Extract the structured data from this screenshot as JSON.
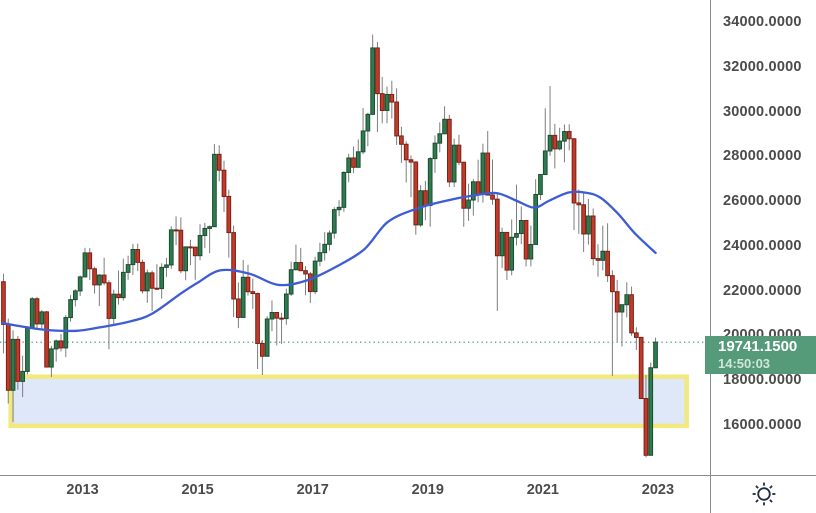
{
  "price_badge": {
    "price": "19741.1500",
    "time": "14:50:03",
    "bg_color": "#569b79"
  },
  "y_axis": {
    "tick_labels": [
      "34000.0000",
      "32000.0000",
      "30000.0000",
      "28000.0000",
      "26000.0000",
      "24000.0000",
      "22000.0000",
      "20000.0000",
      "18000.0000",
      "16000.0000"
    ],
    "tick_values": [
      34000,
      32000,
      30000,
      28000,
      26000,
      24000,
      22000,
      20000,
      18000,
      16000
    ]
  },
  "x_axis": {
    "tick_labels": [
      "2013",
      "2015",
      "2017",
      "2019",
      "2021",
      "2023"
    ],
    "tick_values": [
      2013,
      2015,
      2017,
      2019,
      2021,
      2023
    ]
  },
  "chart_data": {
    "type": "candlestick",
    "timeframe": "monthly",
    "start_month": "2011-08",
    "xlim": [
      2011.565,
      2023.905
    ],
    "ylim": [
      13806,
      35029
    ],
    "grid": "off",
    "legend": "none",
    "current_price": 19741.15,
    "current_price_label": "19741.1500",
    "current_time_label": "14:50:03",
    "colors": {
      "up_fill": "#2f7b50",
      "up_border": "#1b4d30",
      "down_fill": "#c13a2c",
      "down_border": "#7c2012",
      "wick": "#7d7d7d",
      "dotted_price_line": "#2c8f6d",
      "ma_line": "#3e5cd5",
      "badge_bg": "#569b79",
      "axis_line": "#8a8a8a",
      "axis_text": "#4b4b4b",
      "zone_fill": "#dbe6f8",
      "zone_border": "#f1e878",
      "settings_icon": "#1f2c3f"
    },
    "candles_ohlc": [
      [
        22440,
        22808,
        19241,
        20535
      ],
      [
        20535,
        20790,
        16999,
        17592
      ],
      [
        17592,
        20272,
        16170,
        19865
      ],
      [
        19865,
        20014,
        17613,
        17989
      ],
      [
        17989,
        19138,
        17286,
        18434
      ],
      [
        18434,
        20441,
        18306,
        20390
      ],
      [
        20390,
        21760,
        20337,
        21680
      ],
      [
        21680,
        21761,
        20324,
        20556
      ],
      [
        20556,
        21174,
        20265,
        21094
      ],
      [
        21094,
        21134,
        18630,
        18629
      ],
      [
        18629,
        19578,
        18186,
        19441
      ],
      [
        19441,
        19854,
        18871,
        19796
      ],
      [
        19796,
        20104,
        19327,
        19483
      ],
      [
        19483,
        20958,
        19076,
        20840
      ],
      [
        20840,
        21845,
        20655,
        21641
      ],
      [
        21641,
        22111,
        21337,
        22030
      ],
      [
        22030,
        22718,
        21807,
        22657
      ],
      [
        22657,
        23960,
        22657,
        23730
      ],
      [
        23730,
        23944,
        22519,
        23020
      ],
      [
        23020,
        23111,
        21911,
        22300
      ],
      [
        22300,
        22790,
        21354,
        22737
      ],
      [
        22737,
        23512,
        22285,
        22392
      ],
      [
        22392,
        22507,
        19426,
        20803
      ],
      [
        20803,
        22088,
        20473,
        21884
      ],
      [
        21884,
        22938,
        21420,
        21731
      ],
      [
        21731,
        23474,
        21600,
        22860
      ],
      [
        22860,
        23605,
        22528,
        23206
      ],
      [
        23206,
        24133,
        22747,
        23881
      ],
      [
        23881,
        24145,
        22918,
        23306
      ],
      [
        23306,
        23426,
        21916,
        22035
      ],
      [
        22035,
        22986,
        21500,
        22837
      ],
      [
        22837,
        22945,
        21137,
        22151
      ],
      [
        22151,
        23225,
        22089,
        22134
      ],
      [
        22134,
        23263,
        21682,
        23082
      ],
      [
        23082,
        23507,
        22660,
        23191
      ],
      [
        23191,
        24916,
        23021,
        24757
      ],
      [
        24757,
        25363,
        24075,
        24742
      ],
      [
        24742,
        25318,
        22820,
        22933
      ],
      [
        22933,
        23999,
        22507,
        23998
      ],
      [
        23998,
        24317,
        23175,
        23987
      ],
      [
        23987,
        24005,
        22530,
        23605
      ],
      [
        23605,
        25011,
        23400,
        24507
      ],
      [
        24507,
        25071,
        23941,
        24823
      ],
      [
        24823,
        24954,
        23717,
        24901
      ],
      [
        24901,
        28589,
        24901,
        28133
      ],
      [
        28133,
        28543,
        26930,
        27424
      ],
      [
        27424,
        27848,
        25557,
        26250
      ],
      [
        26250,
        26553,
        23516,
        24636
      ],
      [
        24636,
        24953,
        20865,
        21671
      ],
      [
        21671,
        22415,
        20368,
        20846
      ],
      [
        20846,
        23418,
        20846,
        22640
      ],
      [
        22640,
        23200,
        21821,
        21996
      ],
      [
        21996,
        22576,
        21232,
        21914
      ],
      [
        21914,
        21958,
        18542,
        19683
      ],
      [
        19683,
        19836,
        18278,
        19112
      ],
      [
        19112,
        20901,
        19112,
        20777
      ],
      [
        20777,
        21608,
        20232,
        21067
      ],
      [
        21067,
        21085,
        19595,
        20815
      ],
      [
        20815,
        21051,
        19663,
        20794
      ],
      [
        20794,
        22130,
        20518,
        21891
      ],
      [
        21891,
        23340,
        21807,
        22977
      ],
      [
        22977,
        24100,
        22949,
        23297
      ],
      [
        23297,
        23953,
        22934,
        22935
      ],
      [
        22935,
        23147,
        21839,
        22790
      ],
      [
        22790,
        22880,
        21488,
        22001
      ],
      [
        22001,
        23559,
        21884,
        23361
      ],
      [
        23361,
        24184,
        23138,
        23741
      ],
      [
        23741,
        24656,
        23384,
        24112
      ],
      [
        24112,
        24737,
        23825,
        24615
      ],
      [
        24615,
        25771,
        24366,
        25661
      ],
      [
        25661,
        26090,
        25371,
        25765
      ],
      [
        25765,
        27381,
        25565,
        27324
      ],
      [
        27324,
        28155,
        26884,
        27970
      ],
      [
        27970,
        28483,
        27295,
        27554
      ],
      [
        27554,
        28798,
        27554,
        28246
      ],
      [
        28246,
        30199,
        28141,
        29177
      ],
      [
        29177,
        29988,
        28496,
        29919
      ],
      [
        29919,
        33484,
        29919,
        32887
      ],
      [
        32887,
        33154,
        29129,
        30845
      ],
      [
        30845,
        31594,
        29518,
        30093
      ],
      [
        30093,
        31162,
        29519,
        30808
      ],
      [
        30808,
        31422,
        29730,
        30469
      ],
      [
        30469,
        31087,
        28556,
        28955
      ],
      [
        28955,
        29368,
        27753,
        28583
      ],
      [
        28583,
        28717,
        26871,
        27889
      ],
      [
        27889,
        28079,
        26220,
        27789
      ],
      [
        27789,
        27823,
        24541,
        24980
      ],
      [
        24980,
        26751,
        24896,
        26507
      ],
      [
        26507,
        26949,
        25180,
        25846
      ],
      [
        25846,
        28011,
        24897,
        27942
      ],
      [
        27942,
        28974,
        27305,
        28633
      ],
      [
        28633,
        29562,
        28220,
        29051
      ],
      [
        29051,
        30280,
        29051,
        29699
      ],
      [
        29699,
        29893,
        26672,
        26901
      ],
      [
        26901,
        28831,
        26672,
        28542
      ],
      [
        28542,
        29008,
        27658,
        27778
      ],
      [
        27778,
        27810,
        24899,
        25725
      ],
      [
        25725,
        26820,
        25163,
        26092
      ],
      [
        26092,
        27020,
        25394,
        26907
      ],
      [
        26907,
        27895,
        25993,
        26346
      ],
      [
        26346,
        28608,
        25978,
        28190
      ],
      [
        28190,
        29175,
        26312,
        26313
      ],
      [
        26313,
        27902,
        25878,
        26130
      ],
      [
        26130,
        26408,
        21139,
        23603
      ],
      [
        23603,
        24855,
        23050,
        24644
      ],
      [
        24644,
        24656,
        22520,
        22961
      ],
      [
        22961,
        25227,
        22729,
        24427
      ],
      [
        24427,
        26782,
        24060,
        24595
      ],
      [
        24595,
        25803,
        24120,
        25177
      ],
      [
        25177,
        25206,
        23124,
        23459
      ],
      [
        23459,
        24953,
        23124,
        24107
      ],
      [
        24107,
        27025,
        24107,
        26341
      ],
      [
        26341,
        27232,
        26094,
        27231
      ],
      [
        27231,
        30191,
        27231,
        28284
      ],
      [
        28284,
        31183,
        28072,
        28980
      ],
      [
        28980,
        29493,
        27505,
        28378
      ],
      [
        28378,
        29320,
        28310,
        28724
      ],
      [
        28724,
        29469,
        27778,
        29152
      ],
      [
        29152,
        29477,
        28310,
        28828
      ],
      [
        28828,
        28858,
        24749,
        25961
      ],
      [
        25961,
        26560,
        24581,
        25879
      ],
      [
        25879,
        26418,
        23771,
        24576
      ],
      [
        24576,
        26136,
        24100,
        25377
      ],
      [
        25377,
        25713,
        23175,
        23475
      ],
      [
        23475,
        24117,
        22665,
        23398
      ],
      [
        23398,
        24952,
        22945,
        23802
      ],
      [
        23802,
        25051,
        22432,
        22713
      ],
      [
        22713,
        22953,
        18235,
        21997
      ],
      [
        21997,
        22525,
        19769,
        21089
      ],
      [
        21089,
        21415,
        19545,
        21415
      ],
      [
        21415,
        22418,
        20845,
        21860
      ],
      [
        21860,
        22230,
        20027,
        20157
      ],
      [
        20157,
        20405,
        19388,
        19954
      ],
      [
        19954,
        19954,
        17201,
        17223
      ],
      [
        17223,
        18278,
        14597,
        14687
      ],
      [
        14687,
        18829,
        14687,
        18597
      ],
      [
        18597,
        19942,
        18597,
        19741.15
      ]
    ],
    "ma_line": {
      "name": "moving-average",
      "points": [
        [
          2011.6,
          20600
        ],
        [
          2012.0,
          20420
        ],
        [
          2012.4,
          20280
        ],
        [
          2012.9,
          20250
        ],
        [
          2013.3,
          20400
        ],
        [
          2013.8,
          20650
        ],
        [
          2014.2,
          21000
        ],
        [
          2014.7,
          21900
        ],
        [
          2015.0,
          22400
        ],
        [
          2015.4,
          22950
        ],
        [
          2015.9,
          22800
        ],
        [
          2016.4,
          22300
        ],
        [
          2016.9,
          22500
        ],
        [
          2017.4,
          23100
        ],
        [
          2017.9,
          23900
        ],
        [
          2018.3,
          25100
        ],
        [
          2018.8,
          25700
        ],
        [
          2019.3,
          26050
        ],
        [
          2019.8,
          26300
        ],
        [
          2020.2,
          26400
        ],
        [
          2020.55,
          26050
        ],
        [
          2020.85,
          25750
        ],
        [
          2021.1,
          26050
        ],
        [
          2021.45,
          26430
        ],
        [
          2021.75,
          26420
        ],
        [
          2022.0,
          26200
        ],
        [
          2022.3,
          25500
        ],
        [
          2022.6,
          24600
        ],
        [
          2022.96,
          23730
        ]
      ]
    },
    "zone_rectangle": {
      "t_start": 2011.75,
      "t_end": 2023.5,
      "price_top": 18200,
      "price_bottom": 16000
    }
  }
}
